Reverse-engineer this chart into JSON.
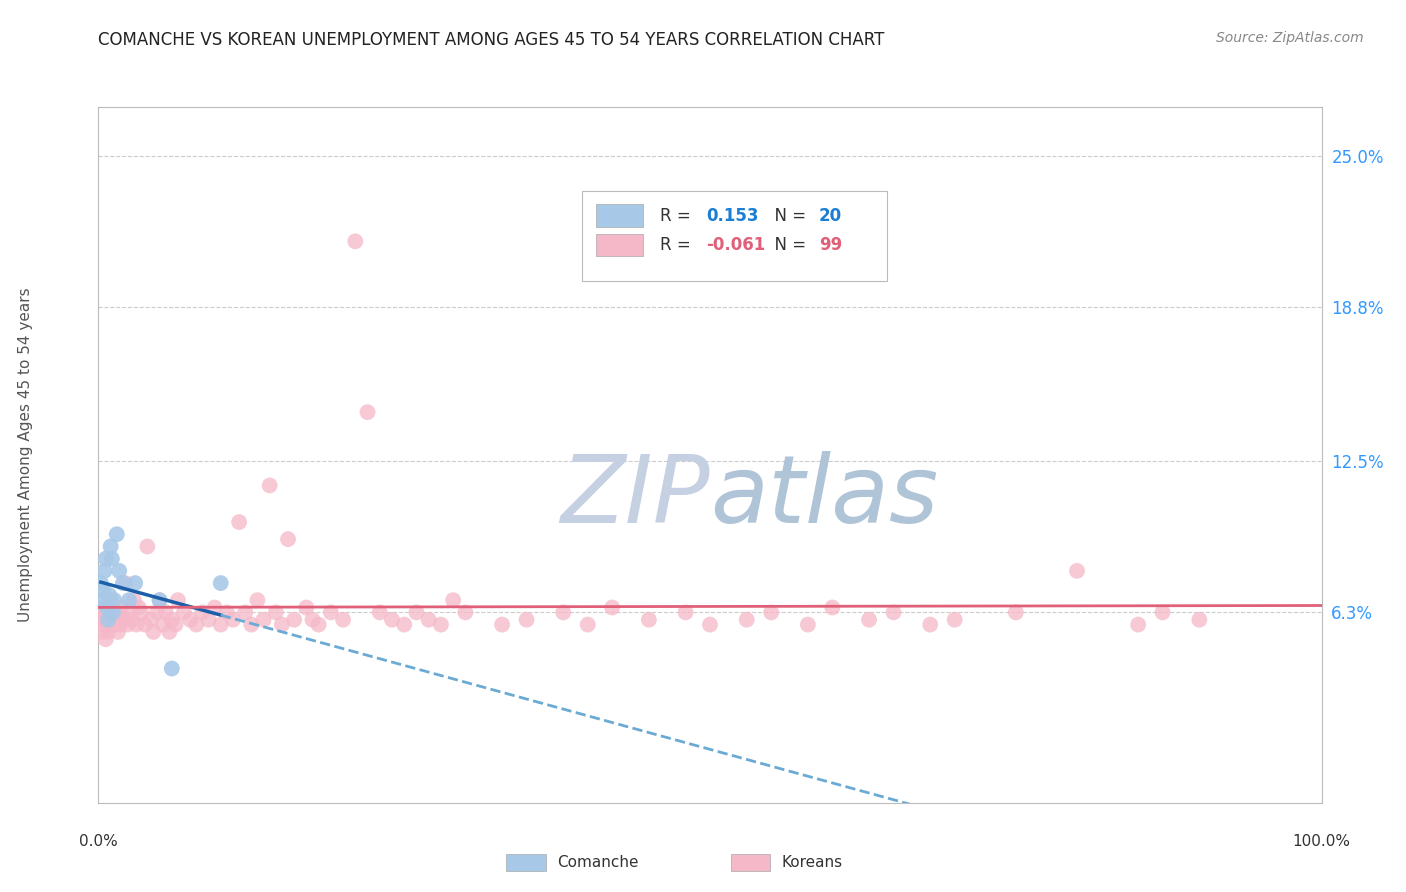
{
  "title": "COMANCHE VS KOREAN UNEMPLOYMENT AMONG AGES 45 TO 54 YEARS CORRELATION CHART",
  "source": "Source: ZipAtlas.com",
  "ylabel": "Unemployment Among Ages 45 to 54 years",
  "ytick_labels": [
    "6.3%",
    "12.5%",
    "18.8%",
    "25.0%"
  ],
  "ytick_values": [
    0.063,
    0.125,
    0.188,
    0.25
  ],
  "xlim": [
    0.0,
    1.0
  ],
  "ylim": [
    -0.015,
    0.27
  ],
  "comanche_R": "0.153",
  "comanche_N": "20",
  "korean_R": "-0.061",
  "korean_N": "99",
  "comanche_color": "#a8c8e8",
  "korean_color": "#f5b8c8",
  "comanche_line_color": "#1a5fa8",
  "korean_line_color": "#e0607a",
  "comanche_line_color_dashed": "#6aaad4",
  "background_color": "#ffffff",
  "grid_color": "#cccccc",
  "watermark_zip_color": "#c8d4e8",
  "watermark_atlas_color": "#b8c8d8",
  "title_color": "#222222",
  "source_color": "#888888",
  "ylabel_color": "#555555",
  "axis_label_color": "#333333",
  "right_tick_color": "#3399ff",
  "legend_r_comanche_color": "#1a7fd4",
  "legend_n_comanche_color": "#1a7fd4",
  "legend_r_korean_color": "#e0607a",
  "legend_n_korean_color": "#e0607a",
  "comanche_x": [
    0.002,
    0.003,
    0.004,
    0.005,
    0.006,
    0.007,
    0.008,
    0.009,
    0.01,
    0.011,
    0.012,
    0.013,
    0.015,
    0.017,
    0.02,
    0.025,
    0.03,
    0.05,
    0.06,
    0.1
  ],
  "comanche_y": [
    0.075,
    0.068,
    0.072,
    0.08,
    0.085,
    0.065,
    0.06,
    0.07,
    0.09,
    0.085,
    0.063,
    0.068,
    0.095,
    0.08,
    0.075,
    0.068,
    0.075,
    0.068,
    0.04,
    0.075
  ],
  "korean_x": [
    0.002,
    0.003,
    0.003,
    0.004,
    0.005,
    0.005,
    0.006,
    0.007,
    0.007,
    0.008,
    0.008,
    0.009,
    0.01,
    0.01,
    0.011,
    0.012,
    0.013,
    0.014,
    0.015,
    0.016,
    0.017,
    0.018,
    0.019,
    0.02,
    0.022,
    0.024,
    0.025,
    0.027,
    0.029,
    0.031,
    0.033,
    0.035,
    0.038,
    0.04,
    0.043,
    0.045,
    0.048,
    0.05,
    0.053,
    0.055,
    0.058,
    0.06,
    0.063,
    0.065,
    0.07,
    0.075,
    0.08,
    0.085,
    0.09,
    0.095,
    0.1,
    0.105,
    0.11,
    0.115,
    0.12,
    0.125,
    0.13,
    0.135,
    0.14,
    0.145,
    0.15,
    0.155,
    0.16,
    0.17,
    0.175,
    0.18,
    0.19,
    0.2,
    0.21,
    0.22,
    0.23,
    0.24,
    0.25,
    0.26,
    0.27,
    0.28,
    0.29,
    0.3,
    0.33,
    0.35,
    0.38,
    0.4,
    0.42,
    0.45,
    0.48,
    0.5,
    0.53,
    0.55,
    0.58,
    0.6,
    0.63,
    0.65,
    0.68,
    0.7,
    0.75,
    0.8,
    0.85,
    0.87,
    0.9
  ],
  "korean_y": [
    0.06,
    0.055,
    0.063,
    0.058,
    0.06,
    0.065,
    0.052,
    0.058,
    0.063,
    0.055,
    0.06,
    0.063,
    0.058,
    0.068,
    0.06,
    0.065,
    0.058,
    0.063,
    0.06,
    0.055,
    0.063,
    0.058,
    0.065,
    0.06,
    0.075,
    0.058,
    0.063,
    0.06,
    0.068,
    0.058,
    0.065,
    0.063,
    0.058,
    0.09,
    0.06,
    0.055,
    0.063,
    0.068,
    0.058,
    0.063,
    0.055,
    0.06,
    0.058,
    0.068,
    0.063,
    0.06,
    0.058,
    0.063,
    0.06,
    0.065,
    0.058,
    0.063,
    0.06,
    0.1,
    0.063,
    0.058,
    0.068,
    0.06,
    0.115,
    0.063,
    0.058,
    0.093,
    0.06,
    0.065,
    0.06,
    0.058,
    0.063,
    0.06,
    0.215,
    0.145,
    0.063,
    0.06,
    0.058,
    0.063,
    0.06,
    0.058,
    0.068,
    0.063,
    0.058,
    0.06,
    0.063,
    0.058,
    0.065,
    0.06,
    0.063,
    0.058,
    0.06,
    0.063,
    0.058,
    0.065,
    0.06,
    0.063,
    0.058,
    0.06,
    0.063,
    0.08,
    0.058,
    0.063,
    0.06
  ]
}
